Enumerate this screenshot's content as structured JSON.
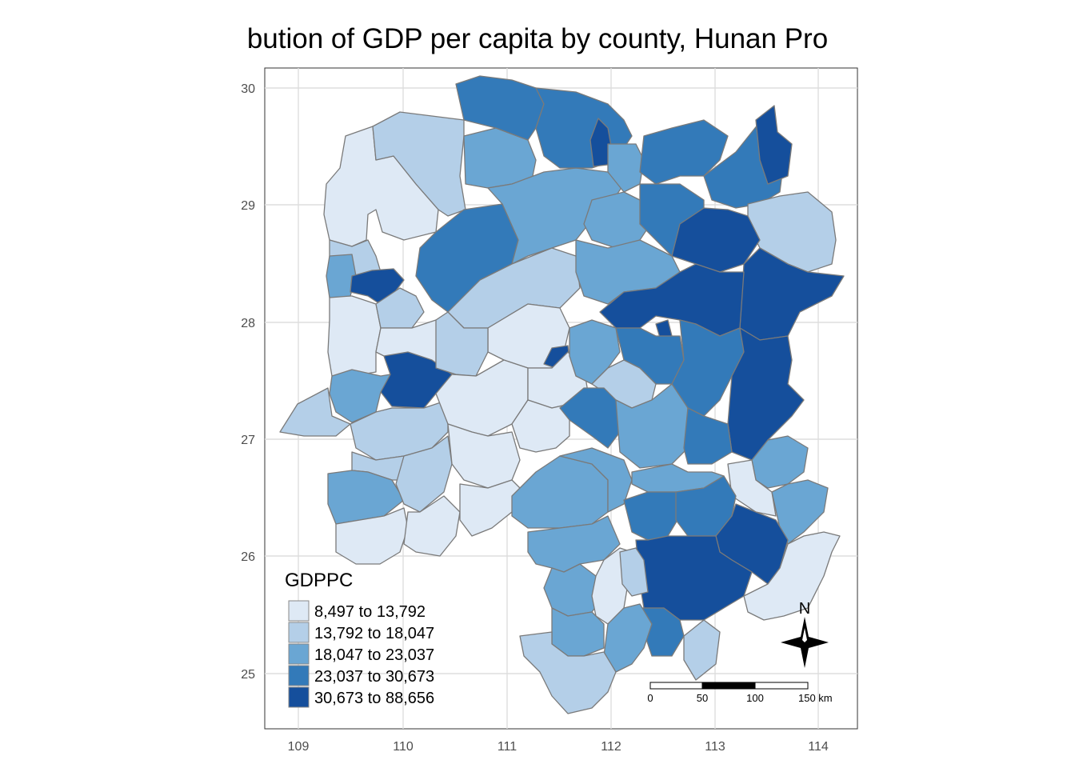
{
  "title": "bution of GDP per capita by county, Hunan Pro",
  "axes": {
    "x_ticks": [
      "109",
      "110",
      "111",
      "112",
      "113",
      "114"
    ],
    "y_ticks": [
      "30",
      "29",
      "28",
      "27",
      "26",
      "25"
    ],
    "xlim": [
      108.77,
      114.32
    ],
    "ylim": [
      24.53,
      30.27
    ],
    "grid": true
  },
  "legend": {
    "title": "GDPPC",
    "placement": "bottom-left",
    "classes": [
      {
        "label": "8,497 to 13,792",
        "color": "#dee9f5"
      },
      {
        "label": "13,792 to 18,047",
        "color": "#b4cfe8"
      },
      {
        "label": "18,047 to 23,037",
        "color": "#6aa6d3"
      },
      {
        "label": "23,037 to 30,673",
        "color": "#337ab9"
      },
      {
        "label": "30,673 to 88,656",
        "color": "#154f9c"
      }
    ]
  },
  "scale_bar": {
    "labels": [
      "0",
      "50",
      "100",
      "150 km"
    ]
  },
  "north_arrow": {
    "label": "N"
  }
}
